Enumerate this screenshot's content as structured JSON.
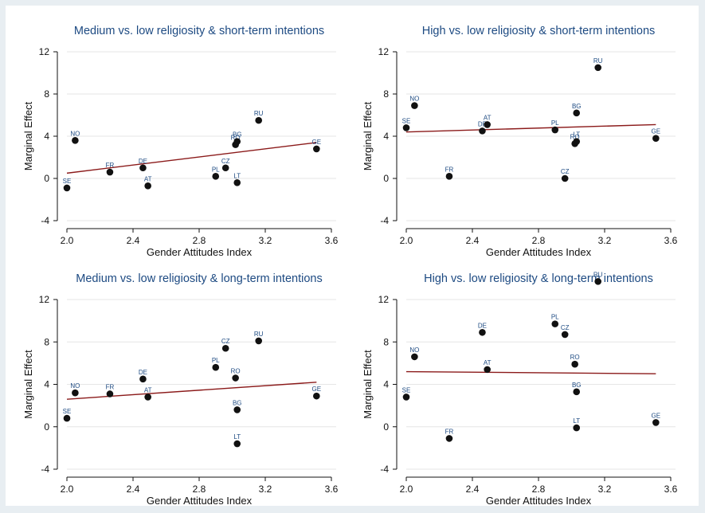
{
  "chart_data": [
    {
      "type": "scatter",
      "title": "Medium vs. low religiosity & short-term intentions",
      "xlabel": "Gender Attitudes Index",
      "ylabel": "Marginal Effect",
      "xlim": [
        2.0,
        3.6
      ],
      "ylim": [
        -4,
        12
      ],
      "xticks": [
        "2.0",
        "2.4",
        "2.8",
        "3.2",
        "3.6"
      ],
      "yticks": [
        "-4",
        "0",
        "4",
        "8",
        "12"
      ],
      "grid": true,
      "points": [
        {
          "label": "SE",
          "x": 2.0,
          "y": -0.9
        },
        {
          "label": "NO",
          "x": 2.05,
          "y": 3.6
        },
        {
          "label": "FR",
          "x": 2.26,
          "y": 0.6
        },
        {
          "label": "DE",
          "x": 2.46,
          "y": 1.0
        },
        {
          "label": "AT",
          "x": 2.49,
          "y": -0.7
        },
        {
          "label": "PL",
          "x": 2.9,
          "y": 0.2
        },
        {
          "label": "CZ",
          "x": 2.96,
          "y": 1.0
        },
        {
          "label": "RO",
          "x": 3.02,
          "y": 3.2
        },
        {
          "label": "BG",
          "x": 3.03,
          "y": 3.5
        },
        {
          "label": "LT",
          "x": 3.03,
          "y": -0.4
        },
        {
          "label": "RU",
          "x": 3.16,
          "y": 5.5
        },
        {
          "label": "GE",
          "x": 3.51,
          "y": 2.8
        }
      ],
      "fit_line": {
        "x": [
          2.0,
          3.51
        ],
        "y": [
          0.5,
          3.4
        ]
      }
    },
    {
      "type": "scatter",
      "title": "High vs. low religiosity & short-term intentions",
      "xlabel": "Gender Attitudes Index",
      "ylabel": "Marginal Effect",
      "xlim": [
        2.0,
        3.6
      ],
      "ylim": [
        -4,
        12
      ],
      "xticks": [
        "2.0",
        "2.4",
        "2.8",
        "3.2",
        "3.6"
      ],
      "yticks": [
        "-4",
        "0",
        "4",
        "8",
        "12"
      ],
      "grid": true,
      "points": [
        {
          "label": "SE",
          "x": 2.0,
          "y": 4.8
        },
        {
          "label": "NO",
          "x": 2.05,
          "y": 6.9
        },
        {
          "label": "FR",
          "x": 2.26,
          "y": 0.2
        },
        {
          "label": "DE",
          "x": 2.46,
          "y": 4.5
        },
        {
          "label": "AT",
          "x": 2.49,
          "y": 5.1
        },
        {
          "label": "PL",
          "x": 2.9,
          "y": 4.6
        },
        {
          "label": "CZ",
          "x": 2.96,
          "y": 0.0
        },
        {
          "label": "RO",
          "x": 3.02,
          "y": 3.3
        },
        {
          "label": "LT",
          "x": 3.03,
          "y": 3.5
        },
        {
          "label": "BG",
          "x": 3.03,
          "y": 6.2
        },
        {
          "label": "RU",
          "x": 3.16,
          "y": 10.5
        },
        {
          "label": "GE",
          "x": 3.51,
          "y": 3.8
        }
      ],
      "fit_line": {
        "x": [
          2.0,
          3.51
        ],
        "y": [
          4.4,
          5.1
        ]
      }
    },
    {
      "type": "scatter",
      "title": "Medium vs. low religiosity & long-term intentions",
      "xlabel": "Gender Attitudes Index",
      "ylabel": "Marginal Effect",
      "xlim": [
        2.0,
        3.6
      ],
      "ylim": [
        -4,
        12
      ],
      "xticks": [
        "2.0",
        "2.4",
        "2.8",
        "3.2",
        "3.6"
      ],
      "yticks": [
        "-4",
        "0",
        "4",
        "8",
        "12"
      ],
      "grid": true,
      "points": [
        {
          "label": "SE",
          "x": 2.0,
          "y": 0.8
        },
        {
          "label": "NO",
          "x": 2.05,
          "y": 3.2
        },
        {
          "label": "FR",
          "x": 2.26,
          "y": 3.1
        },
        {
          "label": "DE",
          "x": 2.46,
          "y": 4.5
        },
        {
          "label": "AT",
          "x": 2.49,
          "y": 2.8
        },
        {
          "label": "PL",
          "x": 2.9,
          "y": 5.6
        },
        {
          "label": "CZ",
          "x": 2.96,
          "y": 7.4
        },
        {
          "label": "RO",
          "x": 3.02,
          "y": 4.6
        },
        {
          "label": "BG",
          "x": 3.03,
          "y": 1.6
        },
        {
          "label": "LT",
          "x": 3.03,
          "y": -1.6
        },
        {
          "label": "RU",
          "x": 3.16,
          "y": 8.1
        },
        {
          "label": "GE",
          "x": 3.51,
          "y": 2.9
        }
      ],
      "fit_line": {
        "x": [
          2.0,
          3.51
        ],
        "y": [
          2.6,
          4.2
        ]
      }
    },
    {
      "type": "scatter",
      "title": "High vs. low religiosity & long-term intentions",
      "xlabel": "Gender Attitudes Index",
      "ylabel": "Marginal Effect",
      "xlim": [
        2.0,
        3.6
      ],
      "ylim": [
        -4,
        12
      ],
      "xticks": [
        "2.0",
        "2.4",
        "2.8",
        "3.2",
        "3.6"
      ],
      "yticks": [
        "-4",
        "0",
        "4",
        "8",
        "12"
      ],
      "grid": true,
      "points": [
        {
          "label": "SE",
          "x": 2.0,
          "y": 2.8
        },
        {
          "label": "NO",
          "x": 2.05,
          "y": 6.6
        },
        {
          "label": "FR",
          "x": 2.26,
          "y": -1.1
        },
        {
          "label": "DE",
          "x": 2.46,
          "y": 8.9
        },
        {
          "label": "AT",
          "x": 2.49,
          "y": 5.4
        },
        {
          "label": "PL",
          "x": 2.9,
          "y": 9.7
        },
        {
          "label": "CZ",
          "x": 2.96,
          "y": 8.7
        },
        {
          "label": "RO",
          "x": 3.02,
          "y": 5.9
        },
        {
          "label": "BG",
          "x": 3.03,
          "y": 3.3
        },
        {
          "label": "LT",
          "x": 3.03,
          "y": -0.1
        },
        {
          "label": "RU",
          "x": 3.16,
          "y": 13.7
        },
        {
          "label": "GE",
          "x": 3.51,
          "y": 0.4
        }
      ],
      "fit_line": {
        "x": [
          2.0,
          3.51
        ],
        "y": [
          5.2,
          5.0
        ]
      }
    }
  ]
}
